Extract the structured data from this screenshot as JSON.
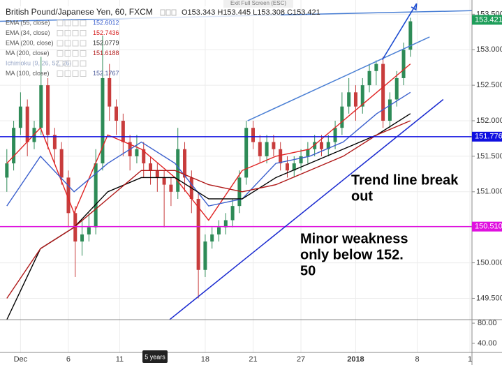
{
  "chart_data": {
    "type": "candlestick",
    "title": "British Pound/Japanese Yen, 60, FXCM",
    "ohlc_label": "O153.343 H153.445 L153.308 C153.421",
    "indicators": [
      {
        "name": "EMA (55, close)",
        "value": "152.6012",
        "color": "#3a5fcd"
      },
      {
        "name": "EMA (34, close)",
        "value": "152.7436",
        "color": "#d62020"
      },
      {
        "name": "EMA (200, close)",
        "value": "152.0779",
        "color": "#222222"
      },
      {
        "name": "MA (200, close)",
        "value": "151.6188",
        "color": "#b01818"
      },
      {
        "name": "Ichimoku (9, 26, 52, 26)",
        "color": "#9aa9c9"
      },
      {
        "name": "MA (100, close)",
        "value": "152.1767",
        "color": "#4a5a9a"
      }
    ],
    "open": [
      151.2,
      151.4,
      151.9,
      152.2,
      151.7,
      151.9,
      152.5,
      151.8,
      151.6,
      151.2,
      150.7,
      150.3,
      150.4,
      150.5,
      151.4,
      152.6,
      152.2,
      152.0,
      151.7,
      151.5,
      151.6,
      151.4,
      151.3,
      151.2,
      151.1,
      151.0,
      151.6,
      151.2,
      150.9,
      149.9,
      150.3,
      150.4,
      150.5,
      150.6,
      150.8,
      151.2,
      151.9,
      151.7,
      151.5,
      151.7,
      151.6,
      151.4,
      151.3,
      151.4,
      151.5,
      151.6,
      151.7,
      151.6,
      151.7,
      151.9,
      152.2,
      152.4,
      152.2,
      152.5,
      152.7,
      152.8,
      152.0,
      152.3,
      152.6,
      153.0
    ],
    "high": [
      151.6,
      152.0,
      152.4,
      152.3,
      152.0,
      152.9,
      152.6,
      151.9,
      151.7,
      151.3,
      150.8,
      150.6,
      150.7,
      151.6,
      153.2,
      152.8,
      152.3,
      152.1,
      151.8,
      151.8,
      151.7,
      151.5,
      151.4,
      151.3,
      151.2,
      151.9,
      151.7,
      151.3,
      151.0,
      150.4,
      150.5,
      150.6,
      150.7,
      150.9,
      151.3,
      152.0,
      152.0,
      151.8,
      151.8,
      151.8,
      151.7,
      151.5,
      151.5,
      151.6,
      151.7,
      151.8,
      151.8,
      151.8,
      152.0,
      152.4,
      152.6,
      152.5,
      152.6,
      152.8,
      152.85,
      152.9,
      152.4,
      152.7,
      153.1,
      153.45
    ],
    "low": [
      151.0,
      151.3,
      151.8,
      151.5,
      151.6,
      151.8,
      151.6,
      151.4,
      151.1,
      150.5,
      149.8,
      150.1,
      150.3,
      150.4,
      151.3,
      152.0,
      151.8,
      151.5,
      151.3,
      151.4,
      151.2,
      151.1,
      151.0,
      150.5,
      150.8,
      150.9,
      151.0,
      150.7,
      149.5,
      149.8,
      150.2,
      150.3,
      150.4,
      150.5,
      150.7,
      151.1,
      151.6,
      151.4,
      151.4,
      151.5,
      151.3,
      151.2,
      151.2,
      151.3,
      151.4,
      151.5,
      151.5,
      151.5,
      151.6,
      151.8,
      152.1,
      152.0,
      152.1,
      152.4,
      152.5,
      151.9,
      151.9,
      152.2,
      152.5,
      152.9
    ],
    "close": [
      151.4,
      151.9,
      152.2,
      151.7,
      151.9,
      152.5,
      151.8,
      151.6,
      151.2,
      150.7,
      150.3,
      150.4,
      150.5,
      151.4,
      152.6,
      152.2,
      152.0,
      151.7,
      151.5,
      151.6,
      151.4,
      151.3,
      151.2,
      151.1,
      151.0,
      151.6,
      151.2,
      150.9,
      149.9,
      150.3,
      150.4,
      150.5,
      150.6,
      150.8,
      151.2,
      151.9,
      151.7,
      151.5,
      151.7,
      151.6,
      151.4,
      151.3,
      151.4,
      151.5,
      151.6,
      151.7,
      151.6,
      151.7,
      151.9,
      152.2,
      152.4,
      152.2,
      152.5,
      152.7,
      152.8,
      152.0,
      152.3,
      152.6,
      153.0,
      153.4
    ],
    "up_color": "#2e8b57",
    "down_color": "#c83c3c",
    "moving_averages": [
      {
        "color": "#e02424",
        "values": [
          151.4,
          151.9,
          150.7,
          151.8,
          151.6,
          151.2,
          150.6,
          151.3,
          151.5,
          151.6,
          152.0,
          152.4,
          152.8
        ]
      },
      {
        "color": "#3a5fcd",
        "values": [
          150.8,
          151.5,
          151.0,
          151.4,
          151.7,
          151.4,
          150.8,
          150.9,
          151.4,
          151.5,
          151.7,
          152.1,
          152.4
        ]
      },
      {
        "color": "#000000",
        "values": [
          149.2,
          150.2,
          150.5,
          151.0,
          151.2,
          151.2,
          150.9,
          150.9,
          151.2,
          151.4,
          151.6,
          151.8,
          152.1
        ]
      },
      {
        "color": "#b01818",
        "values": [
          149.5,
          150.2,
          150.5,
          150.9,
          151.3,
          151.3,
          151.1,
          151.0,
          151.1,
          151.3,
          151.5,
          151.8,
          152.0
        ]
      }
    ],
    "xlim": [
      -1,
      68
    ],
    "xticks": [
      {
        "value": 2,
        "label": "Dec"
      },
      {
        "value": 9,
        "label": "6"
      },
      {
        "value": 16.5,
        "label": "11"
      },
      {
        "value": 29,
        "label": "18"
      },
      {
        "value": 36,
        "label": "21"
      },
      {
        "value": 43,
        "label": "27"
      },
      {
        "value": 51,
        "label": "2018"
      },
      {
        "value": 60,
        "label": "8"
      },
      {
        "value": 67.7,
        "label": "1"
      }
    ],
    "ylim": [
      149.2,
      153.7
    ],
    "yticks": [
      {
        "value": 149.5,
        "label": "149.500"
      },
      {
        "value": 150,
        "label": "150.000"
      },
      {
        "value": 150.5,
        "label": "150.500"
      },
      {
        "value": 151,
        "label": "151.000"
      },
      {
        "value": 151.5,
        "label": "151.500"
      },
      {
        "value": 152,
        "label": "152.000"
      },
      {
        "value": 152.5,
        "label": "152.500"
      },
      {
        "value": 153,
        "label": "153.000"
      },
      {
        "value": 153.5,
        "label": "153.500"
      }
    ],
    "grid": true,
    "levels": [
      {
        "value": 151.776,
        "label": "151.776",
        "color": "#1010e0"
      },
      {
        "value": 150.51,
        "label": "150.510",
        "color": "#e010e0"
      }
    ],
    "last_price": {
      "value": 153.421,
      "label": "153.421",
      "color": "#1e9e5a"
    },
    "trend_lines": [
      {
        "color": "#4a7fd4",
        "points": [
          [
            -1,
            153.4
          ],
          [
            68,
            153.55
          ]
        ]
      },
      {
        "color": "#4a7fd4",
        "points": [
          [
            35.2,
            152.0
          ],
          [
            61.8,
            153.18
          ]
        ]
      },
      {
        "color": "#1a2ad0",
        "points": [
          [
            23.8,
            149.2
          ],
          [
            63.8,
            152.3
          ]
        ]
      }
    ],
    "arrow": {
      "color": "#1a4ad0",
      "points": [
        [
          54.9,
          152.86
        ],
        [
          59.9,
          153.65
        ]
      ]
    },
    "annotations": [
      {
        "lines": [
          "Trend line break",
          "out"
        ]
      },
      {
        "lines": [
          "Minor weakness",
          "only below 152.",
          "50"
        ]
      }
    ],
    "sub_ylim": [
      22,
      87
    ],
    "sub_yticks": [
      {
        "value": 80,
        "label": "80.00"
      },
      {
        "value": 40,
        "label": "40.00"
      }
    ],
    "tooltip": "Exit Full Screen (ESC)",
    "range_badge": "5 years"
  }
}
